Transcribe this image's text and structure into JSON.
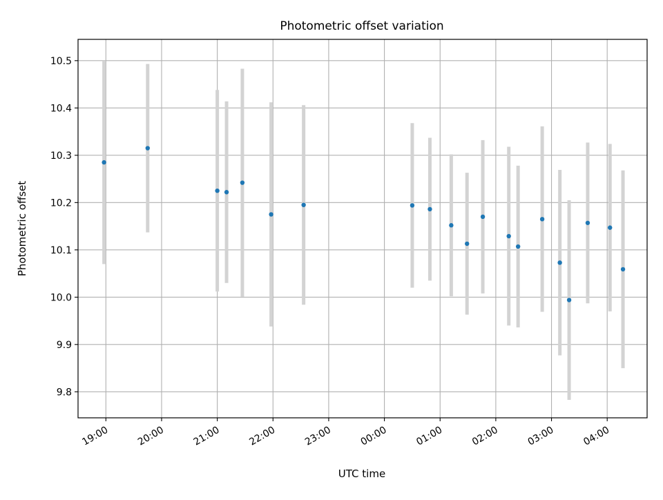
{
  "chart_data": {
    "type": "scatter",
    "title": "Photometric offset variation",
    "xlabel": "UTC time",
    "ylabel": "Photometric offset",
    "grid": true,
    "legend": "none",
    "xlim": [
      "18:30",
      "04:43"
    ],
    "ylim": [
      9.745,
      10.545
    ],
    "x_ticks": [
      "19:00",
      "20:00",
      "21:00",
      "22:00",
      "23:00",
      "00:00",
      "01:00",
      "02:00",
      "03:00",
      "04:00"
    ],
    "y_ticks": [
      "9.8",
      "9.9",
      "10.0",
      "10.1",
      "10.2",
      "10.3",
      "10.4",
      "10.5"
    ],
    "colors": {
      "point": "#1f77b4",
      "errorbar": "#d3d3d3",
      "grid": "#b0b0b0"
    },
    "series": [
      {
        "points": [
          {
            "x": "18:58",
            "y": 10.285,
            "err": 0.215
          },
          {
            "x": "19:45",
            "y": 10.315,
            "err": 0.178
          },
          {
            "x": "21:00",
            "y": 10.225,
            "err": 0.213
          },
          {
            "x": "21:10",
            "y": 10.222,
            "err": 0.192
          },
          {
            "x": "21:27",
            "y": 10.242,
            "err": 0.241
          },
          {
            "x": "21:58",
            "y": 10.175,
            "err": 0.237
          },
          {
            "x": "22:33",
            "y": 10.195,
            "err": 0.211
          },
          {
            "x": "00:30",
            "y": 10.194,
            "err": 0.174
          },
          {
            "x": "00:49",
            "y": 10.186,
            "err": 0.151
          },
          {
            "x": "01:12",
            "y": 10.152,
            "err": 0.15
          },
          {
            "x": "01:29",
            "y": 10.113,
            "err": 0.15
          },
          {
            "x": "01:46",
            "y": 10.17,
            "err": 0.162
          },
          {
            "x": "02:14",
            "y": 10.129,
            "err": 0.189
          },
          {
            "x": "02:24",
            "y": 10.107,
            "err": 0.171
          },
          {
            "x": "02:50",
            "y": 10.165,
            "err": 0.196
          },
          {
            "x": "03:09",
            "y": 10.073,
            "err": 0.196
          },
          {
            "x": "03:19",
            "y": 9.994,
            "err": 0.211
          },
          {
            "x": "03:39",
            "y": 10.157,
            "err": 0.17
          },
          {
            "x": "04:03",
            "y": 10.147,
            "err": 0.177
          },
          {
            "x": "04:17",
            "y": 10.059,
            "err": 0.209
          }
        ]
      }
    ]
  }
}
